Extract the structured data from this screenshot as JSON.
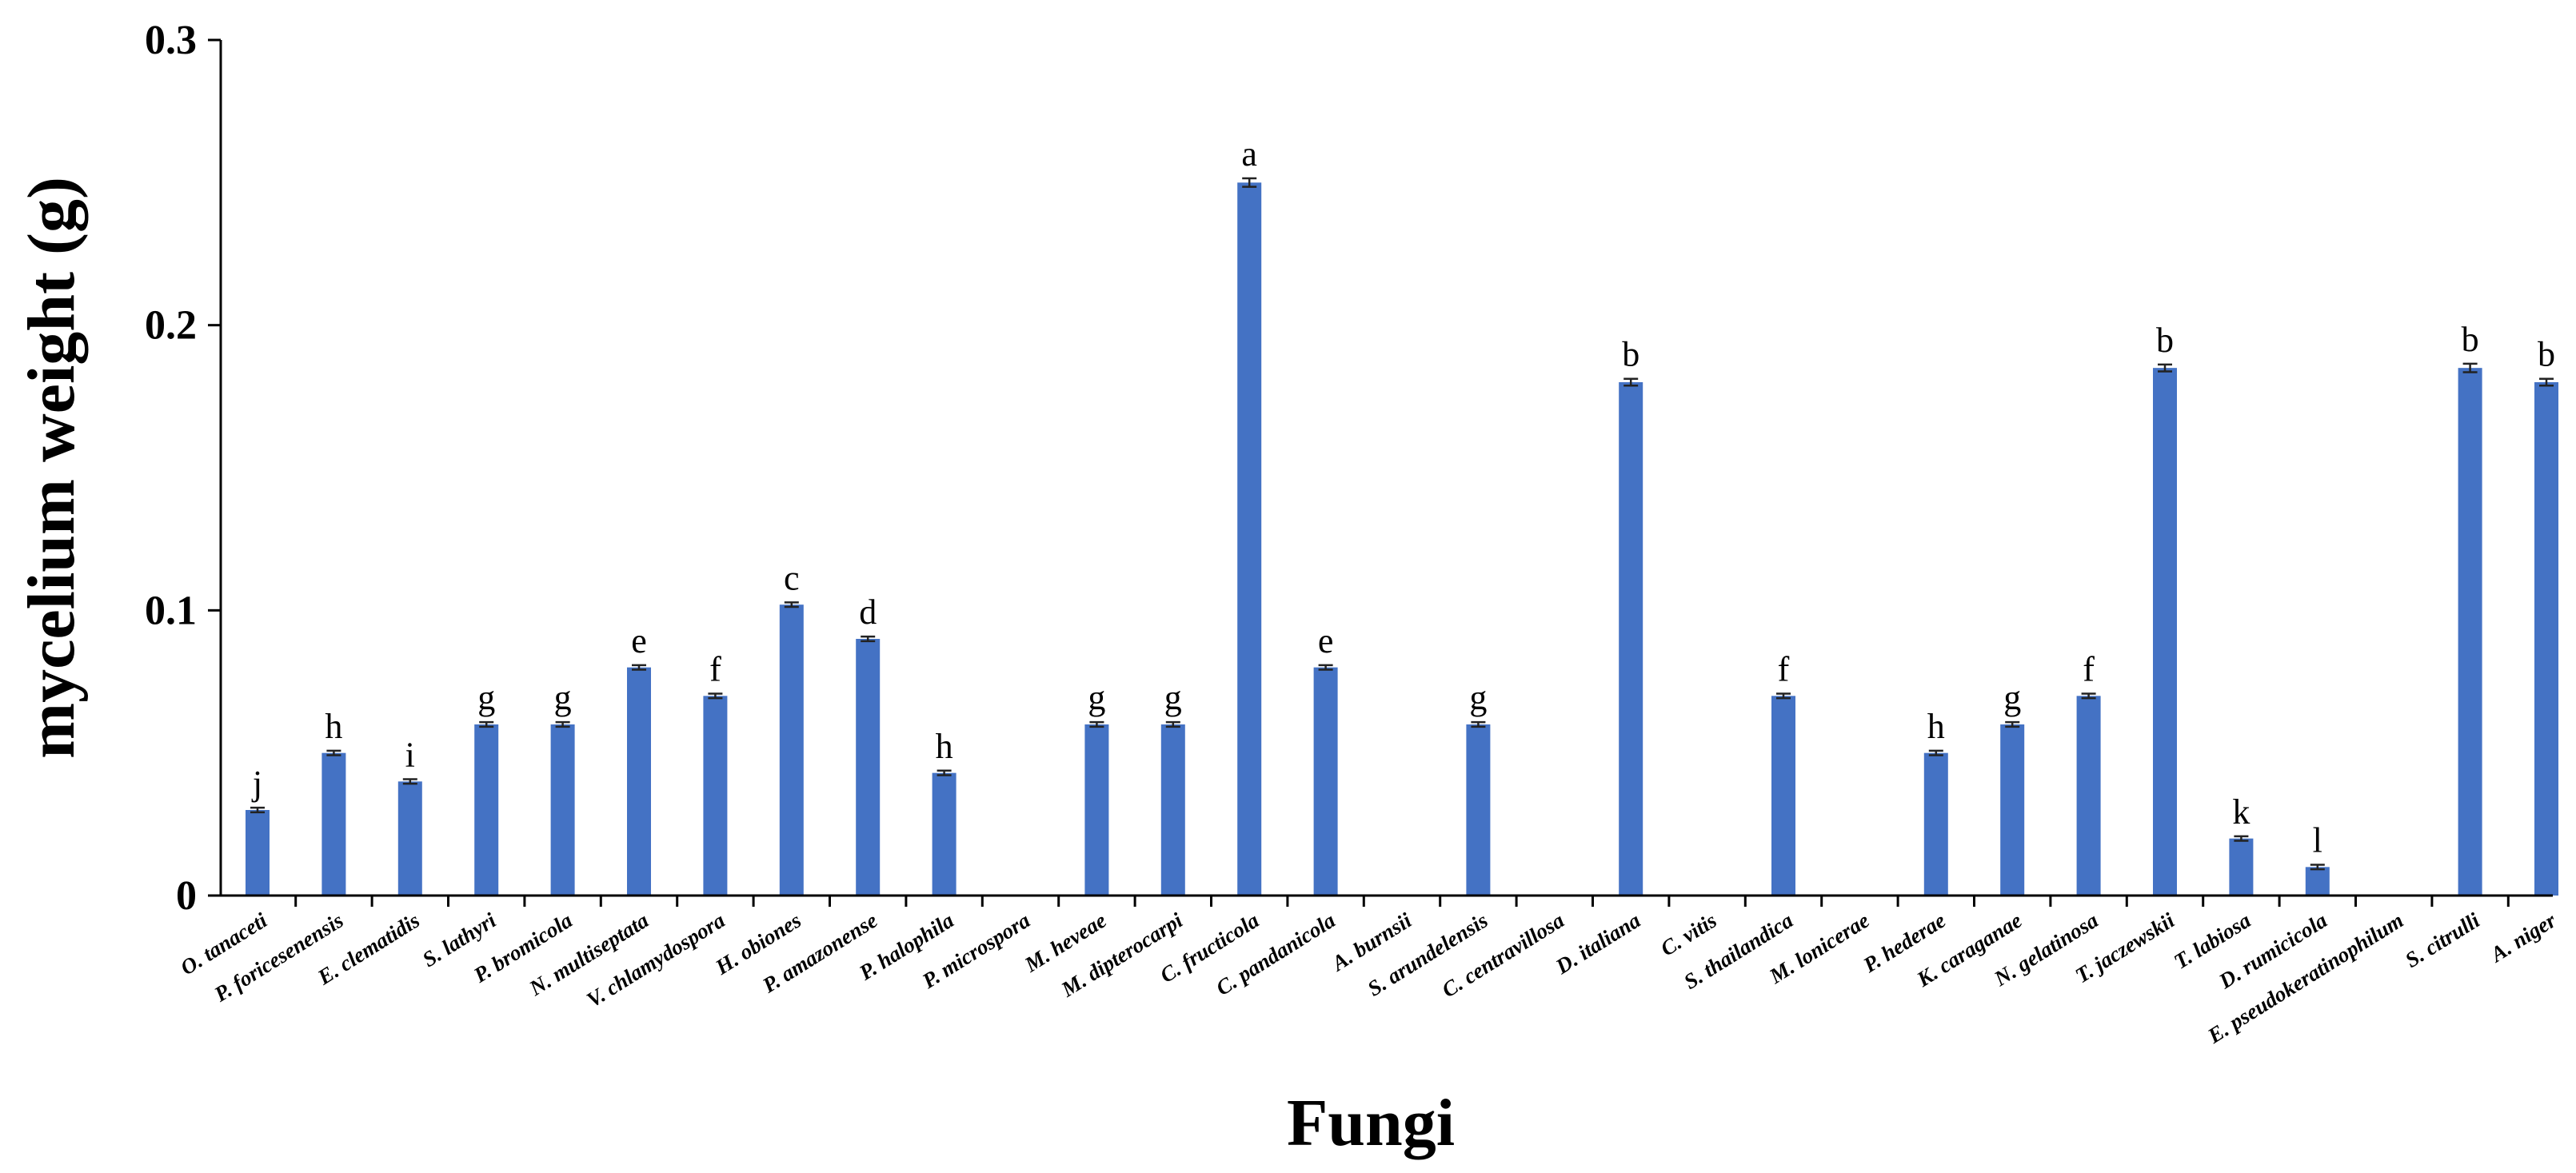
{
  "chart_data": {
    "type": "bar",
    "xlabel": "Fungi",
    "ylabel": "mycelium weight (g)",
    "ylim": [
      0,
      0.3
    ],
    "yticks": [
      "0",
      "0.1",
      "0.2",
      "0.3"
    ],
    "grid": false,
    "colors": {
      "bar": "#4472C4"
    },
    "categories": [
      "O. tanaceti",
      "P. foricesenensis",
      "E. clematidis",
      "S. lathyri",
      "P. bromicola",
      "N. multiseptata",
      "V. chlamydospora",
      "H. obiones",
      "P. amazonense",
      "P. halophila",
      "P. microspora",
      "M. heveae",
      "M. dipterocarpi",
      "C. fructicola",
      "C. pandanicola",
      "A. burnsii",
      "S. arundelensis",
      "C. centravillosa",
      "D. italiana",
      "C. vitis",
      "S. thailandica",
      "M. lonicerae",
      "P. hederae",
      "K. caraganae",
      "N. gelatinosa",
      "T. jaczewskii",
      "T. labiosa",
      "D. rumicicola",
      "E. pseudokeratinophilum",
      "S. citrulli",
      "A. niger"
    ],
    "values": [
      0.03,
      0.05,
      0.04,
      0.06,
      0.06,
      0.08,
      0.07,
      0.102,
      0.09,
      0.043,
      0,
      0.06,
      0.06,
      0.25,
      0.08,
      0,
      0.06,
      0,
      0.18,
      0,
      0.07,
      0,
      0.05,
      0.06,
      0.07,
      0.185,
      0.02,
      0.01,
      0,
      0.185,
      0.18
    ],
    "errors": [
      0.0008,
      0.0008,
      0.0008,
      0.0008,
      0.0008,
      0.0008,
      0.0008,
      0.0008,
      0.0008,
      0.0008,
      0,
      0.0008,
      0.0008,
      0.0015,
      0.0008,
      0,
      0.0008,
      0,
      0.0012,
      0,
      0.0008,
      0,
      0.0008,
      0.0008,
      0.0008,
      0.0012,
      0.0008,
      0.0008,
      0,
      0.0015,
      0.0012
    ],
    "letters": [
      "j",
      "h",
      "i",
      "g",
      "g",
      "e",
      "f",
      "c",
      "d",
      "h",
      "",
      "g",
      "g",
      "a",
      "e",
      "",
      "g",
      "",
      "b",
      "",
      "f",
      "",
      "h",
      "g",
      "f",
      "b",
      "k",
      "l",
      "",
      "b",
      "b"
    ]
  }
}
